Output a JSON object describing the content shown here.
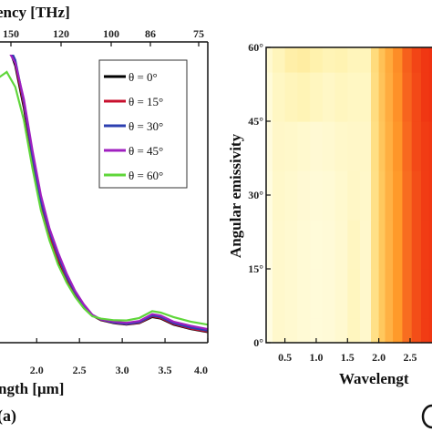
{
  "chart_data": [
    {
      "type": "line",
      "panel_label": "(a)",
      "xlabel": "ngth [μm]",
      "x_top_label": "ency [THz]",
      "x_ticks": [
        "2.0",
        "2.5",
        "3.0",
        "3.5",
        "4.0"
      ],
      "x_top_ticks": [
        "150",
        "120",
        "100",
        "86",
        "75"
      ],
      "xlim": [
        1.55,
        4.0
      ],
      "ylim": [
        0,
        1
      ],
      "legend_position": "top-right",
      "series": [
        {
          "name": "θ = 0°",
          "color": "#000000",
          "x": [
            1.55,
            1.65,
            1.75,
            1.85,
            1.95,
            2.05,
            2.15,
            2.25,
            2.35,
            2.45,
            2.55,
            2.65,
            2.75,
            2.9,
            3.05,
            3.2,
            3.35,
            3.45,
            3.6,
            3.8,
            4.0
          ],
          "y": [
            0.97,
            1.0,
            0.92,
            0.78,
            0.6,
            0.45,
            0.35,
            0.27,
            0.21,
            0.16,
            0.12,
            0.09,
            0.075,
            0.065,
            0.06,
            0.065,
            0.085,
            0.08,
            0.06,
            0.045,
            0.035
          ]
        },
        {
          "name": "θ = 15°",
          "color": "#c8102e",
          "x": [
            1.55,
            1.65,
            1.75,
            1.85,
            1.95,
            2.05,
            2.15,
            2.25,
            2.35,
            2.45,
            2.55,
            2.65,
            2.75,
            2.9,
            3.05,
            3.2,
            3.35,
            3.45,
            3.6,
            3.8,
            4.0
          ],
          "y": [
            0.97,
            1.0,
            0.93,
            0.79,
            0.61,
            0.46,
            0.36,
            0.28,
            0.215,
            0.163,
            0.122,
            0.091,
            0.076,
            0.066,
            0.061,
            0.066,
            0.088,
            0.082,
            0.062,
            0.047,
            0.037
          ]
        },
        {
          "name": "θ = 30°",
          "color": "#2c3fb0",
          "x": [
            1.55,
            1.65,
            1.75,
            1.85,
            1.95,
            2.05,
            2.15,
            2.25,
            2.35,
            2.45,
            2.55,
            2.65,
            2.75,
            2.9,
            3.05,
            3.2,
            3.35,
            3.45,
            3.6,
            3.8,
            4.0
          ],
          "y": [
            0.97,
            1.0,
            0.94,
            0.8,
            0.62,
            0.47,
            0.37,
            0.29,
            0.22,
            0.167,
            0.125,
            0.092,
            0.077,
            0.067,
            0.062,
            0.068,
            0.09,
            0.085,
            0.065,
            0.05,
            0.04
          ]
        },
        {
          "name": "θ = 45°",
          "color": "#a020c0",
          "x": [
            1.55,
            1.65,
            1.75,
            1.85,
            1.95,
            2.05,
            2.15,
            2.25,
            2.35,
            2.45,
            2.55,
            2.65,
            2.75,
            2.9,
            3.05,
            3.2,
            3.35,
            3.45,
            3.6,
            3.8,
            4.0
          ],
          "y": [
            0.96,
            0.98,
            0.93,
            0.81,
            0.64,
            0.49,
            0.38,
            0.3,
            0.23,
            0.172,
            0.128,
            0.093,
            0.078,
            0.07,
            0.066,
            0.072,
            0.095,
            0.09,
            0.07,
            0.056,
            0.045
          ]
        },
        {
          "name": "θ = 60°",
          "color": "#5fd63a",
          "x": [
            1.55,
            1.65,
            1.75,
            1.85,
            1.95,
            2.05,
            2.15,
            2.25,
            2.35,
            2.45,
            2.55,
            2.65,
            2.75,
            2.9,
            3.05,
            3.2,
            3.35,
            3.45,
            3.6,
            3.8,
            4.0
          ],
          "y": [
            0.88,
            0.9,
            0.85,
            0.74,
            0.58,
            0.44,
            0.34,
            0.26,
            0.2,
            0.152,
            0.115,
            0.088,
            0.08,
            0.075,
            0.074,
            0.082,
            0.105,
            0.1,
            0.085,
            0.07,
            0.06
          ]
        }
      ]
    },
    {
      "type": "heatmap",
      "xlabel": "Wavelengt",
      "ylabel": "Angular emissivity",
      "x_ticks": [
        "0.5",
        "1.0",
        "1.5",
        "2.0",
        "2.5"
      ],
      "y_ticks": [
        "0°",
        "15°",
        "30°",
        "45°",
        "60°"
      ],
      "xlim": [
        0.2,
        2.85
      ],
      "ylim": [
        0,
        60
      ],
      "colorscale": [
        "#fffde6",
        "#fff3b0",
        "#ffd36b",
        "#ff9a2a",
        "#ee2a10"
      ],
      "x": [
        0.2,
        0.4,
        0.6,
        0.8,
        1.0,
        1.2,
        1.4,
        1.6,
        1.8,
        1.95,
        2.05,
        2.15,
        2.3,
        2.45,
        2.6,
        2.75,
        2.85
      ],
      "y": [
        0,
        10,
        20,
        30,
        40,
        50,
        60
      ],
      "z": [
        [
          0.02,
          0.12,
          0.1,
          0.08,
          0.06,
          0.07,
          0.1,
          0.18,
          0.12,
          0.4,
          0.55,
          0.65,
          0.75,
          0.85,
          0.92,
          0.96,
          0.97
        ],
        [
          0.02,
          0.12,
          0.1,
          0.08,
          0.06,
          0.07,
          0.1,
          0.18,
          0.12,
          0.4,
          0.55,
          0.65,
          0.75,
          0.85,
          0.92,
          0.96,
          0.97
        ],
        [
          0.02,
          0.12,
          0.1,
          0.08,
          0.06,
          0.07,
          0.1,
          0.17,
          0.12,
          0.4,
          0.55,
          0.65,
          0.75,
          0.85,
          0.92,
          0.96,
          0.97
        ],
        [
          0.03,
          0.13,
          0.11,
          0.09,
          0.07,
          0.08,
          0.11,
          0.15,
          0.13,
          0.4,
          0.55,
          0.65,
          0.75,
          0.85,
          0.92,
          0.96,
          0.97
        ],
        [
          0.04,
          0.14,
          0.13,
          0.11,
          0.09,
          0.1,
          0.13,
          0.14,
          0.14,
          0.41,
          0.56,
          0.66,
          0.76,
          0.86,
          0.93,
          0.96,
          0.97
        ],
        [
          0.06,
          0.16,
          0.2,
          0.22,
          0.18,
          0.15,
          0.18,
          0.16,
          0.16,
          0.42,
          0.57,
          0.67,
          0.77,
          0.87,
          0.93,
          0.97,
          0.98
        ],
        [
          0.1,
          0.2,
          0.28,
          0.3,
          0.26,
          0.22,
          0.24,
          0.2,
          0.2,
          0.44,
          0.58,
          0.68,
          0.78,
          0.88,
          0.94,
          0.97,
          0.98
        ]
      ]
    }
  ]
}
